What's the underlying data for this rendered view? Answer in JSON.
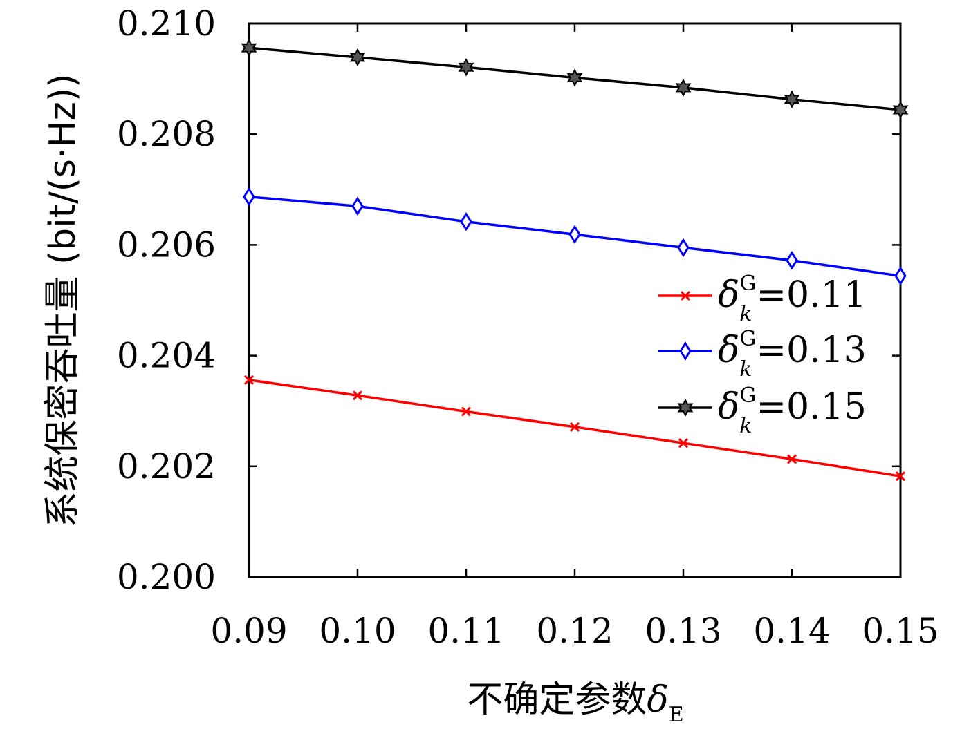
{
  "chart_data": {
    "type": "line",
    "xlabel": "不确定参数",
    "xlabel_symbol": "δ",
    "xlabel_subscript": "E",
    "ylabel": "系统保密吞吐量 (bit/(s·Hz))",
    "x": [
      0.09,
      0.1,
      0.11,
      0.12,
      0.13,
      0.14,
      0.15
    ],
    "x_tick_labels": [
      "0.09",
      "0.10",
      "0.11",
      "0.12",
      "0.13",
      "0.14",
      "0.15"
    ],
    "y_ticks": [
      0.2,
      0.202,
      0.204,
      0.206,
      0.208,
      0.21
    ],
    "y_tick_labels": [
      "0.200",
      "0.202",
      "0.204",
      "0.206",
      "0.208",
      "0.210"
    ],
    "xlim": [
      0.09,
      0.15
    ],
    "ylim": [
      0.2,
      0.21
    ],
    "grid": false,
    "legend_position": "right",
    "series": [
      {
        "name": "δ_k^G=0.11",
        "legend_symbol": "δ",
        "legend_sub": "k",
        "legend_sup": "G",
        "legend_value": "=0.11",
        "color": "#ff0000",
        "marker": "x",
        "values": [
          0.20356,
          0.20328,
          0.20299,
          0.20271,
          0.20242,
          0.20213,
          0.20182
        ]
      },
      {
        "name": "δ_k^G=0.13",
        "legend_symbol": "δ",
        "legend_sub": "k",
        "legend_sup": "G",
        "legend_value": "=0.13",
        "color": "#0000ff",
        "marker": "diamond",
        "values": [
          0.20687,
          0.2067,
          0.20642,
          0.20619,
          0.20595,
          0.20572,
          0.20544
        ]
      },
      {
        "name": "δ_k^G=0.15",
        "legend_symbol": "δ",
        "legend_sub": "k",
        "legend_sup": "G",
        "legend_value": "=0.15",
        "color": "#000000",
        "marker": "hexagram",
        "values": [
          0.20956,
          0.20939,
          0.20921,
          0.20902,
          0.20884,
          0.20863,
          0.20844
        ]
      }
    ]
  }
}
